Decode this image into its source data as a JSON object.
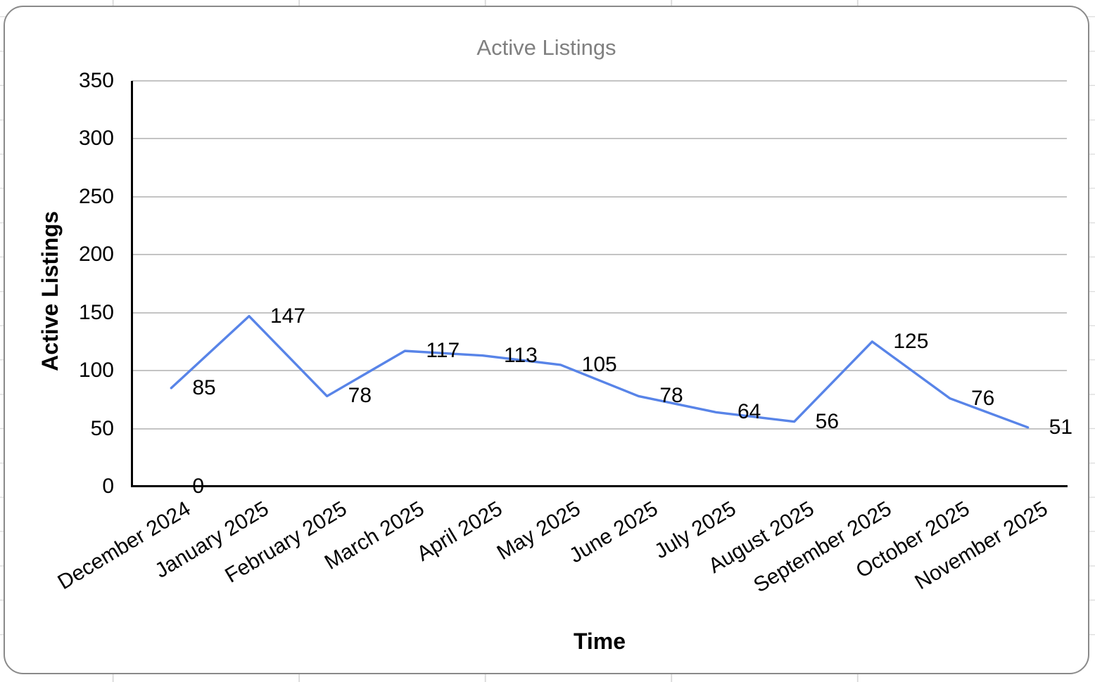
{
  "chart": {
    "title": "Active Listings",
    "x_axis_title": "Time",
    "y_axis_title": "Active Listings",
    "colors": {
      "line": "#5884e8",
      "grid": "#c4c4c4",
      "axis": "#000000",
      "title_text": "#808080",
      "label_text": "#000000",
      "card_border": "#8a8a8a",
      "sheet_gridlines": "#d9d9d9",
      "card_background": "#ffffff"
    }
  },
  "chart_data": {
    "type": "line",
    "title": "Active Listings",
    "xlabel": "Time",
    "ylabel": "Active Listings",
    "categories": [
      "December 2024",
      "January 2025",
      "February 2025",
      "March 2025",
      "April 2025",
      "May 2025",
      "June 2025",
      "July 2025",
      "August 2025",
      "September 2025",
      "October 2025",
      "November 2025"
    ],
    "series": [
      {
        "name": "Active Listings",
        "values": [
          85,
          147,
          78,
          117,
          113,
          105,
          78,
          64,
          56,
          125,
          76,
          51
        ]
      }
    ],
    "annotations": [
      {
        "category": "December 2024",
        "value": 0,
        "text": "0"
      }
    ],
    "ylim": [
      0,
      350
    ],
    "y_ticks": [
      0,
      50,
      100,
      150,
      200,
      250,
      300,
      350
    ],
    "grid": true,
    "legend_position": "none",
    "data_labels": true
  }
}
